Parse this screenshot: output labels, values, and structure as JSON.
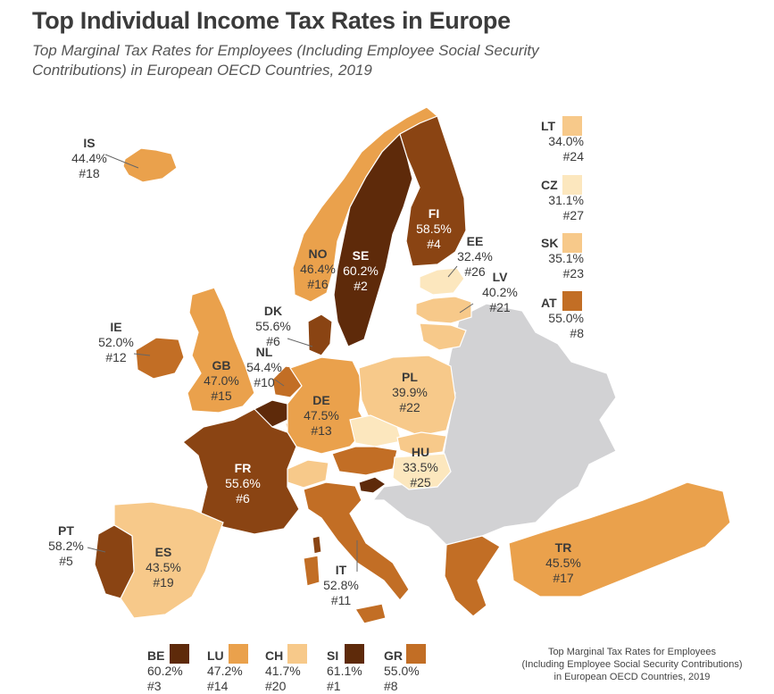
{
  "title": "Top Individual Income Tax Rates in Europe",
  "subtitle": "Top Marginal Tax Rates for Employees (Including Employee Social Security Contributions) in European OECD Countries, 2019",
  "footnote": {
    "line1": "Top Marginal Tax Rates for Employees",
    "line2": "(Including Employee Social Security Contributions)",
    "line3": "in European OECD Countries, 2019"
  },
  "colors": {
    "non_oecd": "#d2d2d4",
    "tier1": "#fce7be",
    "tier2": "#f7c98a",
    "tier3": "#eaa14c",
    "tier4": "#c26e25",
    "tier5": "#8a4413",
    "tier6": "#5e2a0a"
  },
  "countries": {
    "IS": {
      "code": "IS",
      "rate": "44.4%",
      "rank": "#18",
      "tier": "tier3"
    },
    "SE": {
      "code": "SE",
      "rate": "60.2%",
      "rank": "#2",
      "tier": "tier6"
    },
    "FI": {
      "code": "FI",
      "rate": "58.5%",
      "rank": "#4",
      "tier": "tier5"
    },
    "NO": {
      "code": "NO",
      "rate": "46.4%",
      "rank": "#16",
      "tier": "tier3"
    },
    "EE": {
      "code": "EE",
      "rate": "32.4%",
      "rank": "#26",
      "tier": "tier1"
    },
    "LV": {
      "code": "LV",
      "rate": "40.2%",
      "rank": "#21",
      "tier": "tier2"
    },
    "DK": {
      "code": "DK",
      "rate": "55.6%",
      "rank": "#6",
      "tier": "tier5"
    },
    "IE": {
      "code": "IE",
      "rate": "52.0%",
      "rank": "#12",
      "tier": "tier4"
    },
    "NL": {
      "code": "NL",
      "rate": "54.4%",
      "rank": "#10",
      "tier": "tier4"
    },
    "GB": {
      "code": "GB",
      "rate": "47.0%",
      "rank": "#15",
      "tier": "tier3"
    },
    "DE": {
      "code": "DE",
      "rate": "47.5%",
      "rank": "#13",
      "tier": "tier3"
    },
    "PL": {
      "code": "PL",
      "rate": "39.9%",
      "rank": "#22",
      "tier": "tier2"
    },
    "HU": {
      "code": "HU",
      "rate": "33.5%",
      "rank": "#25",
      "tier": "tier1"
    },
    "FR": {
      "code": "FR",
      "rate": "55.6%",
      "rank": "#6",
      "tier": "tier5"
    },
    "PT": {
      "code": "PT",
      "rate": "58.2%",
      "rank": "#5",
      "tier": "tier5"
    },
    "ES": {
      "code": "ES",
      "rate": "43.5%",
      "rank": "#19",
      "tier": "tier2"
    },
    "IT": {
      "code": "IT",
      "rate": "52.8%",
      "rank": "#11",
      "tier": "tier4"
    },
    "TR": {
      "code": "TR",
      "rate": "45.5%",
      "rank": "#17",
      "tier": "tier3"
    },
    "LT": {
      "code": "LT",
      "rate": "34.0%",
      "rank": "#24",
      "tier": "tier2"
    },
    "CZ": {
      "code": "CZ",
      "rate": "31.1%",
      "rank": "#27",
      "tier": "tier1"
    },
    "SK": {
      "code": "SK",
      "rate": "35.1%",
      "rank": "#23",
      "tier": "tier2"
    },
    "AT": {
      "code": "AT",
      "rate": "55.0%",
      "rank": "#8",
      "tier": "tier4"
    },
    "BE": {
      "code": "BE",
      "rate": "60.2%",
      "rank": "#3",
      "tier": "tier6"
    },
    "LU": {
      "code": "LU",
      "rate": "47.2%",
      "rank": "#14",
      "tier": "tier3"
    },
    "CH": {
      "code": "CH",
      "rate": "41.7%",
      "rank": "#20",
      "tier": "tier2"
    },
    "SI": {
      "code": "SI",
      "rate": "61.1%",
      "rank": "#1",
      "tier": "tier6"
    },
    "GR": {
      "code": "GR",
      "rate": "55.0%",
      "rank": "#8",
      "tier": "tier4"
    }
  }
}
